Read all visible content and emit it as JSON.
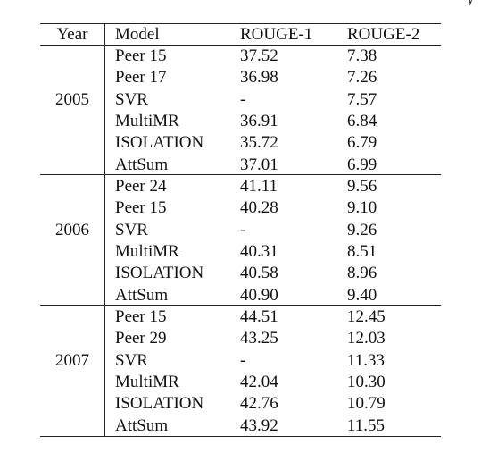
{
  "top_fragment": "y",
  "table": {
    "headers": [
      "Year",
      "Model",
      "ROUGE-1",
      "ROUGE-2"
    ],
    "groups": [
      {
        "year": "2005",
        "rows": [
          {
            "model": "Peer 15",
            "rouge1": "37.52",
            "rouge2": "7.38"
          },
          {
            "model": "Peer 17",
            "rouge1": "36.98",
            "rouge2": "7.26"
          },
          {
            "model": "SVR",
            "rouge1": "-",
            "rouge2": "7.57"
          },
          {
            "model": "MultiMR",
            "rouge1": "36.91",
            "rouge2": "6.84"
          },
          {
            "model": "ISOLATION",
            "rouge1": "35.72",
            "rouge2": "6.79"
          },
          {
            "model": "AttSum",
            "rouge1": "37.01",
            "rouge2": "6.99"
          }
        ]
      },
      {
        "year": "2006",
        "rows": [
          {
            "model": "Peer 24",
            "rouge1": "41.11",
            "rouge2": "9.56"
          },
          {
            "model": "Peer 15",
            "rouge1": "40.28",
            "rouge2": "9.10"
          },
          {
            "model": "SVR",
            "rouge1": "-",
            "rouge2": "9.26"
          },
          {
            "model": "MultiMR",
            "rouge1": "40.31",
            "rouge2": "8.51"
          },
          {
            "model": "ISOLATION",
            "rouge1": "40.58",
            "rouge2": "8.96"
          },
          {
            "model": "AttSum",
            "rouge1": "40.90",
            "rouge2": "9.40"
          }
        ]
      },
      {
        "year": "2007",
        "rows": [
          {
            "model": "Peer 15",
            "rouge1": "44.51",
            "rouge2": "12.45"
          },
          {
            "model": "Peer 29",
            "rouge1": "43.25",
            "rouge2": "12.03"
          },
          {
            "model": "SVR",
            "rouge1": "-",
            "rouge2": "11.33"
          },
          {
            "model": "MultiMR",
            "rouge1": "42.04",
            "rouge2": "10.30"
          },
          {
            "model": "ISOLATION",
            "rouge1": "42.76",
            "rouge2": "10.79"
          },
          {
            "model": "AttSum",
            "rouge1": "43.92",
            "rouge2": "11.55"
          }
        ]
      }
    ]
  }
}
